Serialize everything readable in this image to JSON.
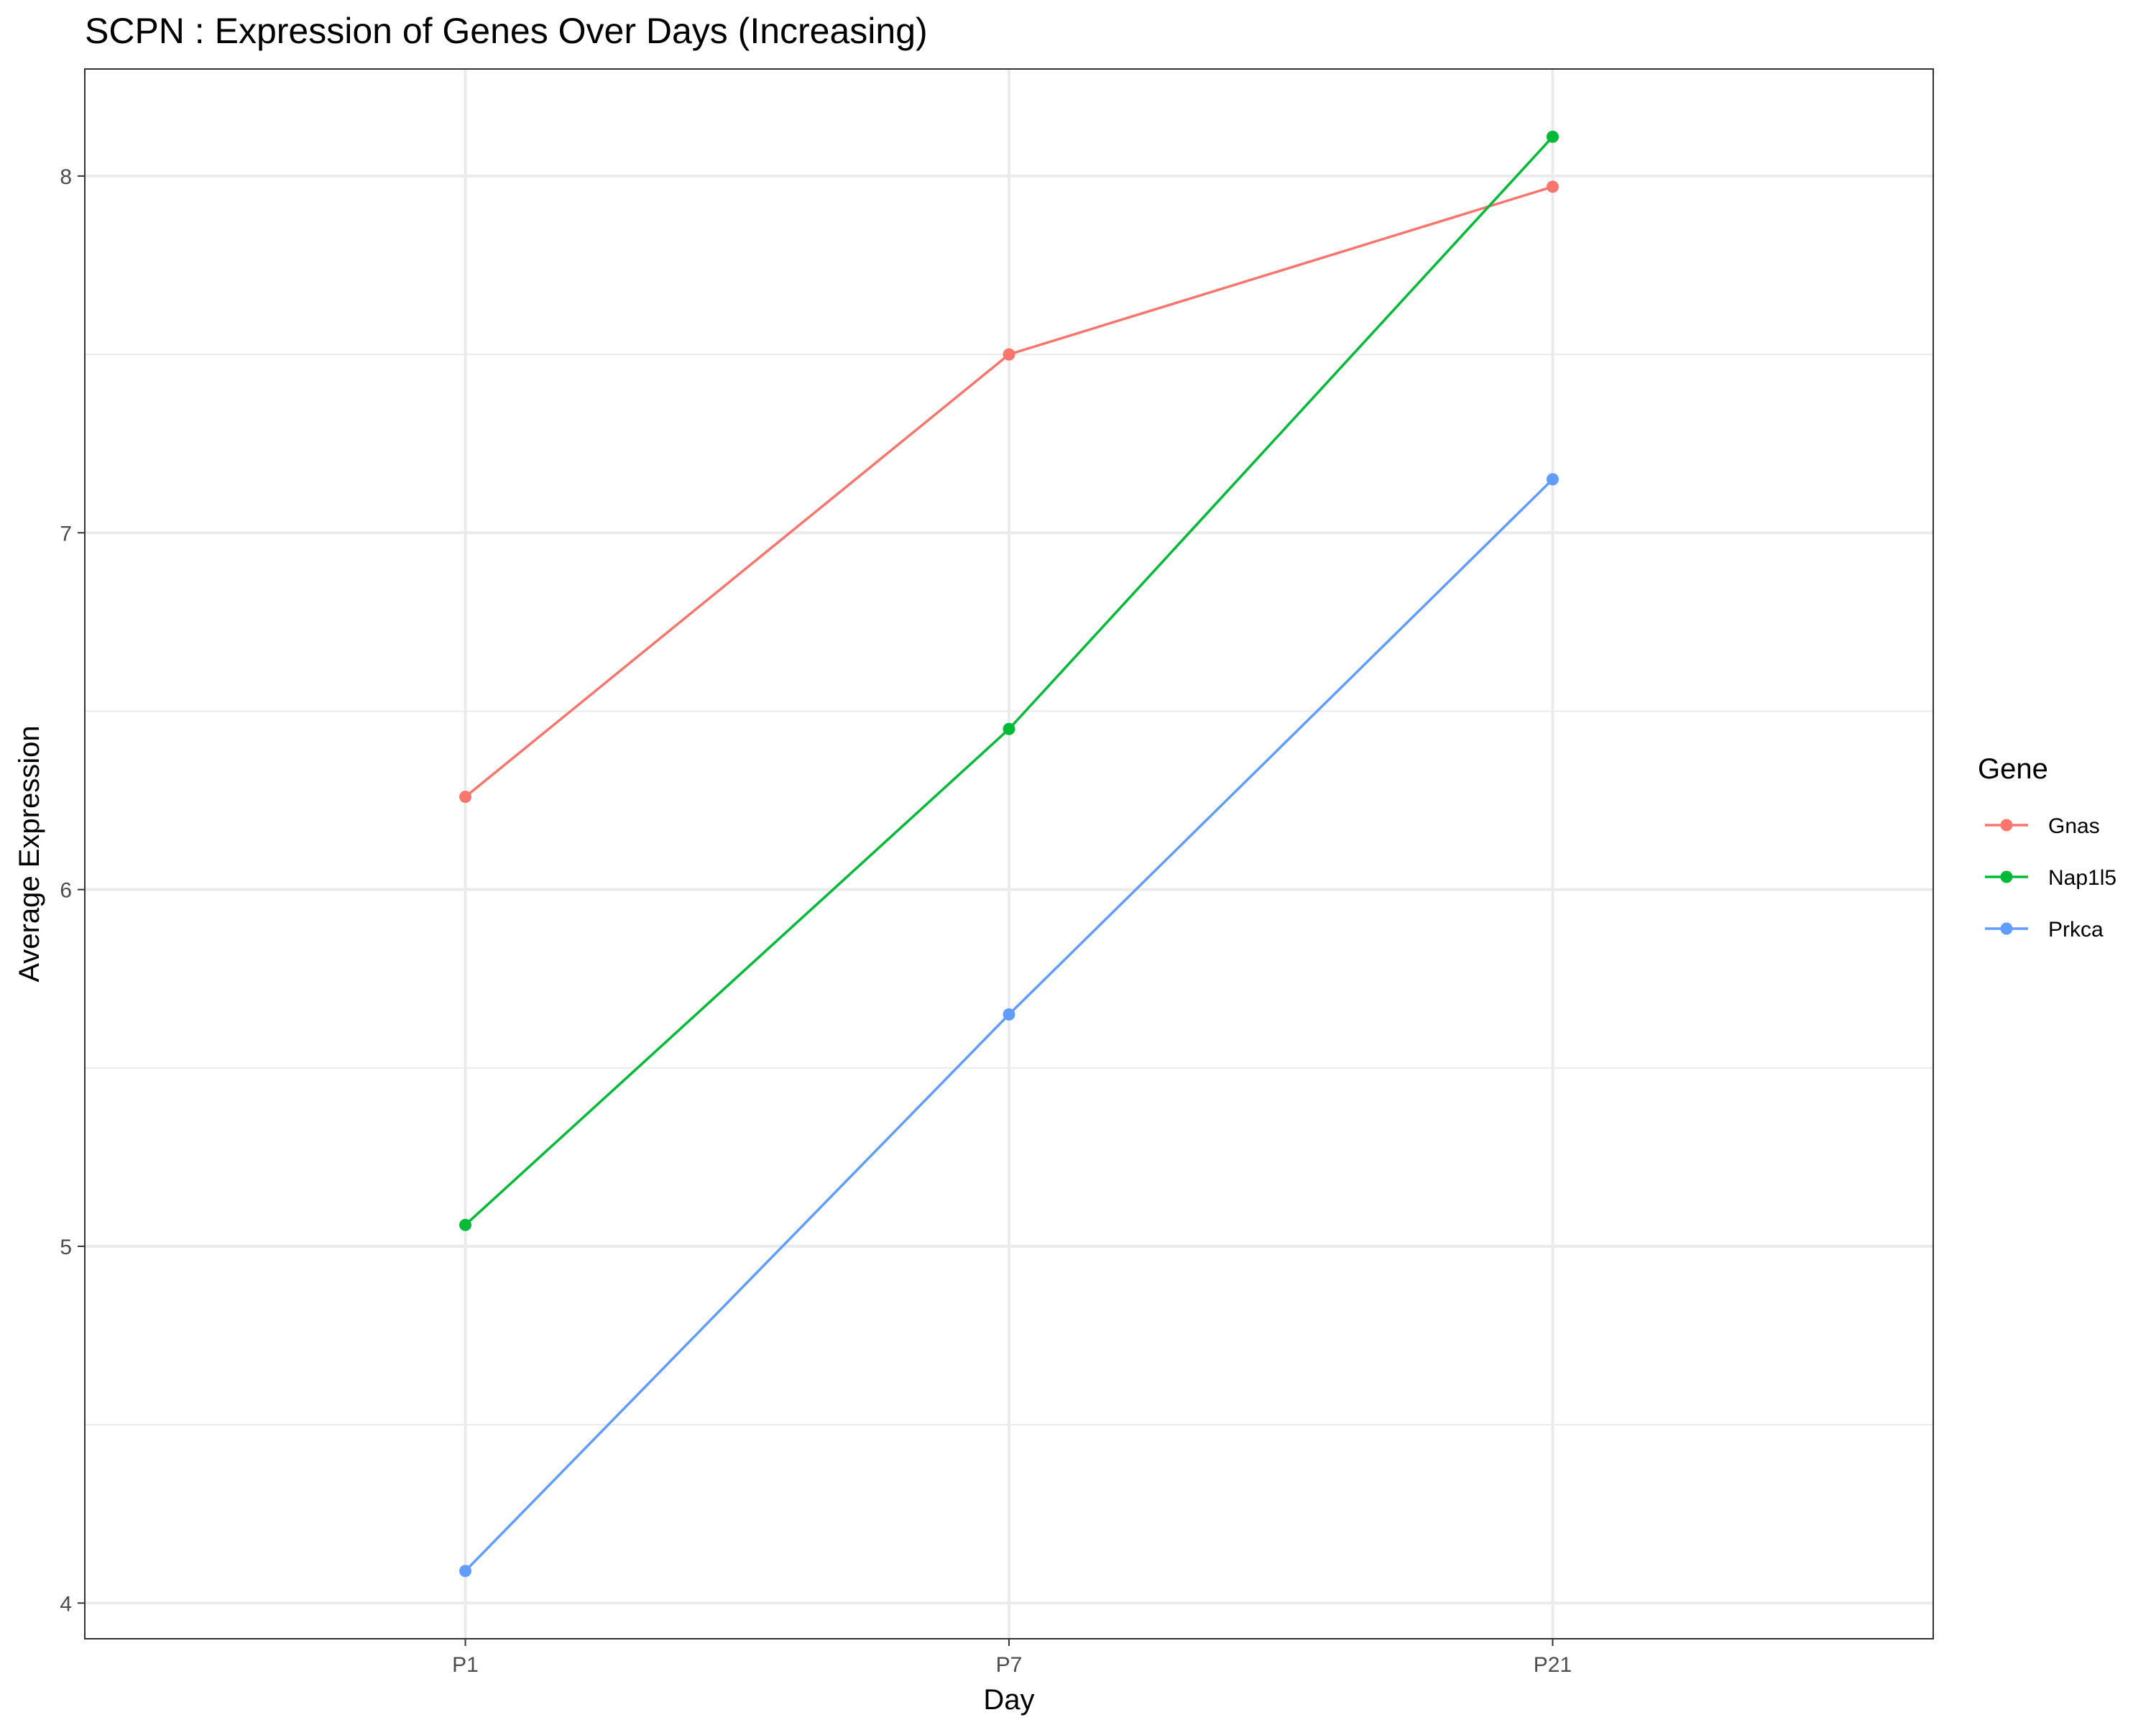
{
  "chart_data": {
    "type": "line",
    "title": "SCPN : Expression of Genes Over Days (Increasing)",
    "xlabel": "Day",
    "ylabel": "Average Expression",
    "categories": [
      "P1",
      "P7",
      "P21"
    ],
    "ylim": [
      3.9,
      8.3
    ],
    "yticks": [
      4,
      5,
      6,
      7,
      8
    ],
    "yminor": [
      4.5,
      5.5,
      6.5,
      7.5
    ],
    "grid": true,
    "legend": {
      "title": "Gene",
      "position": "right"
    },
    "series": [
      {
        "name": "Gnas",
        "color": "#F8766D",
        "values": [
          6.26,
          7.5,
          7.97
        ]
      },
      {
        "name": "Nap1l5",
        "color": "#00BA38",
        "values": [
          5.06,
          6.45,
          8.11
        ]
      },
      {
        "name": "Prkca",
        "color": "#619CFF",
        "values": [
          4.09,
          5.65,
          7.15
        ]
      }
    ]
  }
}
